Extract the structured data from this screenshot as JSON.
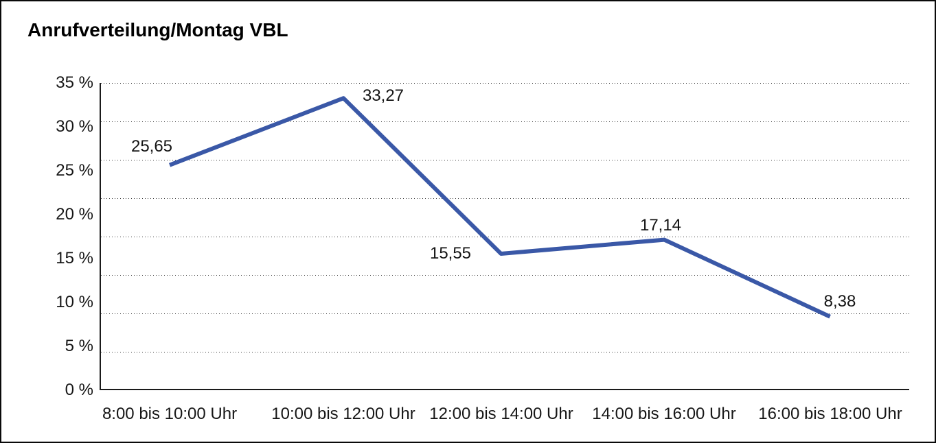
{
  "chart_data": {
    "type": "line",
    "title": "Anrufverteilung/Montag VBL",
    "categories": [
      "8:00 bis 10:00 Uhr",
      "10:00 bis 12:00 Uhr",
      "12:00 bis 14:00 Uhr",
      "14:00 bis 16:00 Uhr",
      "16:00 bis 18:00 Uhr"
    ],
    "values": [
      25.65,
      33.27,
      15.55,
      17.14,
      8.38
    ],
    "point_labels": [
      "25,65",
      "33,27",
      "15,55",
      "17,14",
      "8,38"
    ],
    "y_tick_labels": [
      "35 %",
      "30 %",
      "25 %",
      "20 %",
      "15 %",
      "10 %",
      "5 %",
      "0 %"
    ],
    "ylim": [
      0,
      35
    ],
    "xlabel": "",
    "ylabel": "",
    "grid": true,
    "legend": false,
    "line_color": "#3A58A7"
  }
}
